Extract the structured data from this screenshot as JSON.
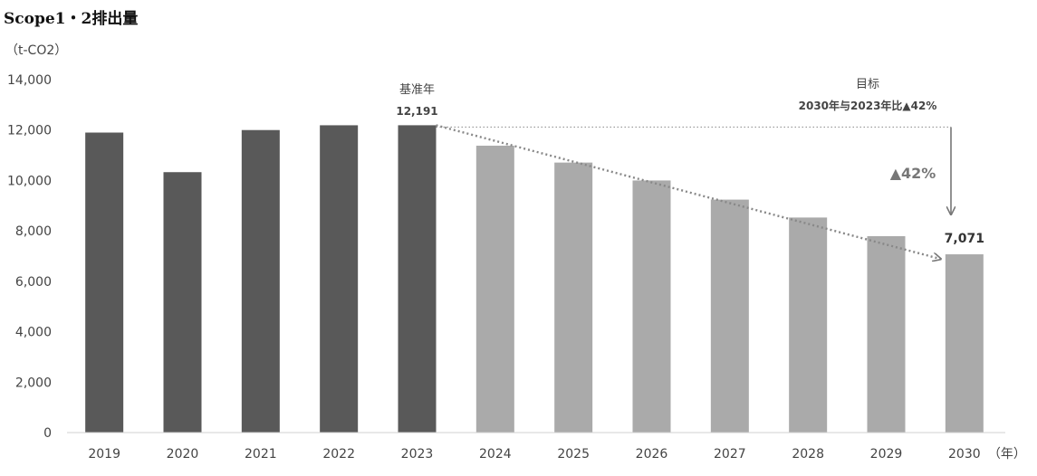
{
  "chart_data": {
    "type": "bar",
    "title": "Scope1・2排出量",
    "ylabel": "（t-CO2）",
    "xlabel": "（年）",
    "ylim": [
      0,
      14000
    ],
    "yticks": [
      0,
      2000,
      4000,
      6000,
      8000,
      10000,
      12000,
      14000
    ],
    "ytick_labels": [
      "0",
      "2,000",
      "4,000",
      "6,000",
      "8,000",
      "10,000",
      "12,000",
      "14,000"
    ],
    "grid": false,
    "legend": "none",
    "categories": [
      "2019",
      "2020",
      "2021",
      "2022",
      "2023",
      "2024",
      "2025",
      "2026",
      "2027",
      "2028",
      "2029",
      "2030"
    ],
    "values": [
      11900,
      10330,
      12000,
      12190,
      12191,
      11380,
      10710,
      10000,
      9240,
      8530,
      7790,
      7071
    ],
    "bar_colors": [
      "#595959",
      "#595959",
      "#595959",
      "#595959",
      "#595959",
      "#aaaaaa",
      "#aaaaaa",
      "#aaaaaa",
      "#aaaaaa",
      "#aaaaaa",
      "#aaaaaa",
      "#aaaaaa"
    ],
    "annotations": {
      "base_year_label": "基准年",
      "base_value_label": "12,191",
      "target_label": "目标",
      "target_detail": "2030年与2023年比▲42%",
      "reduction_label": "▲42%",
      "target_value_label": "7,071"
    }
  }
}
